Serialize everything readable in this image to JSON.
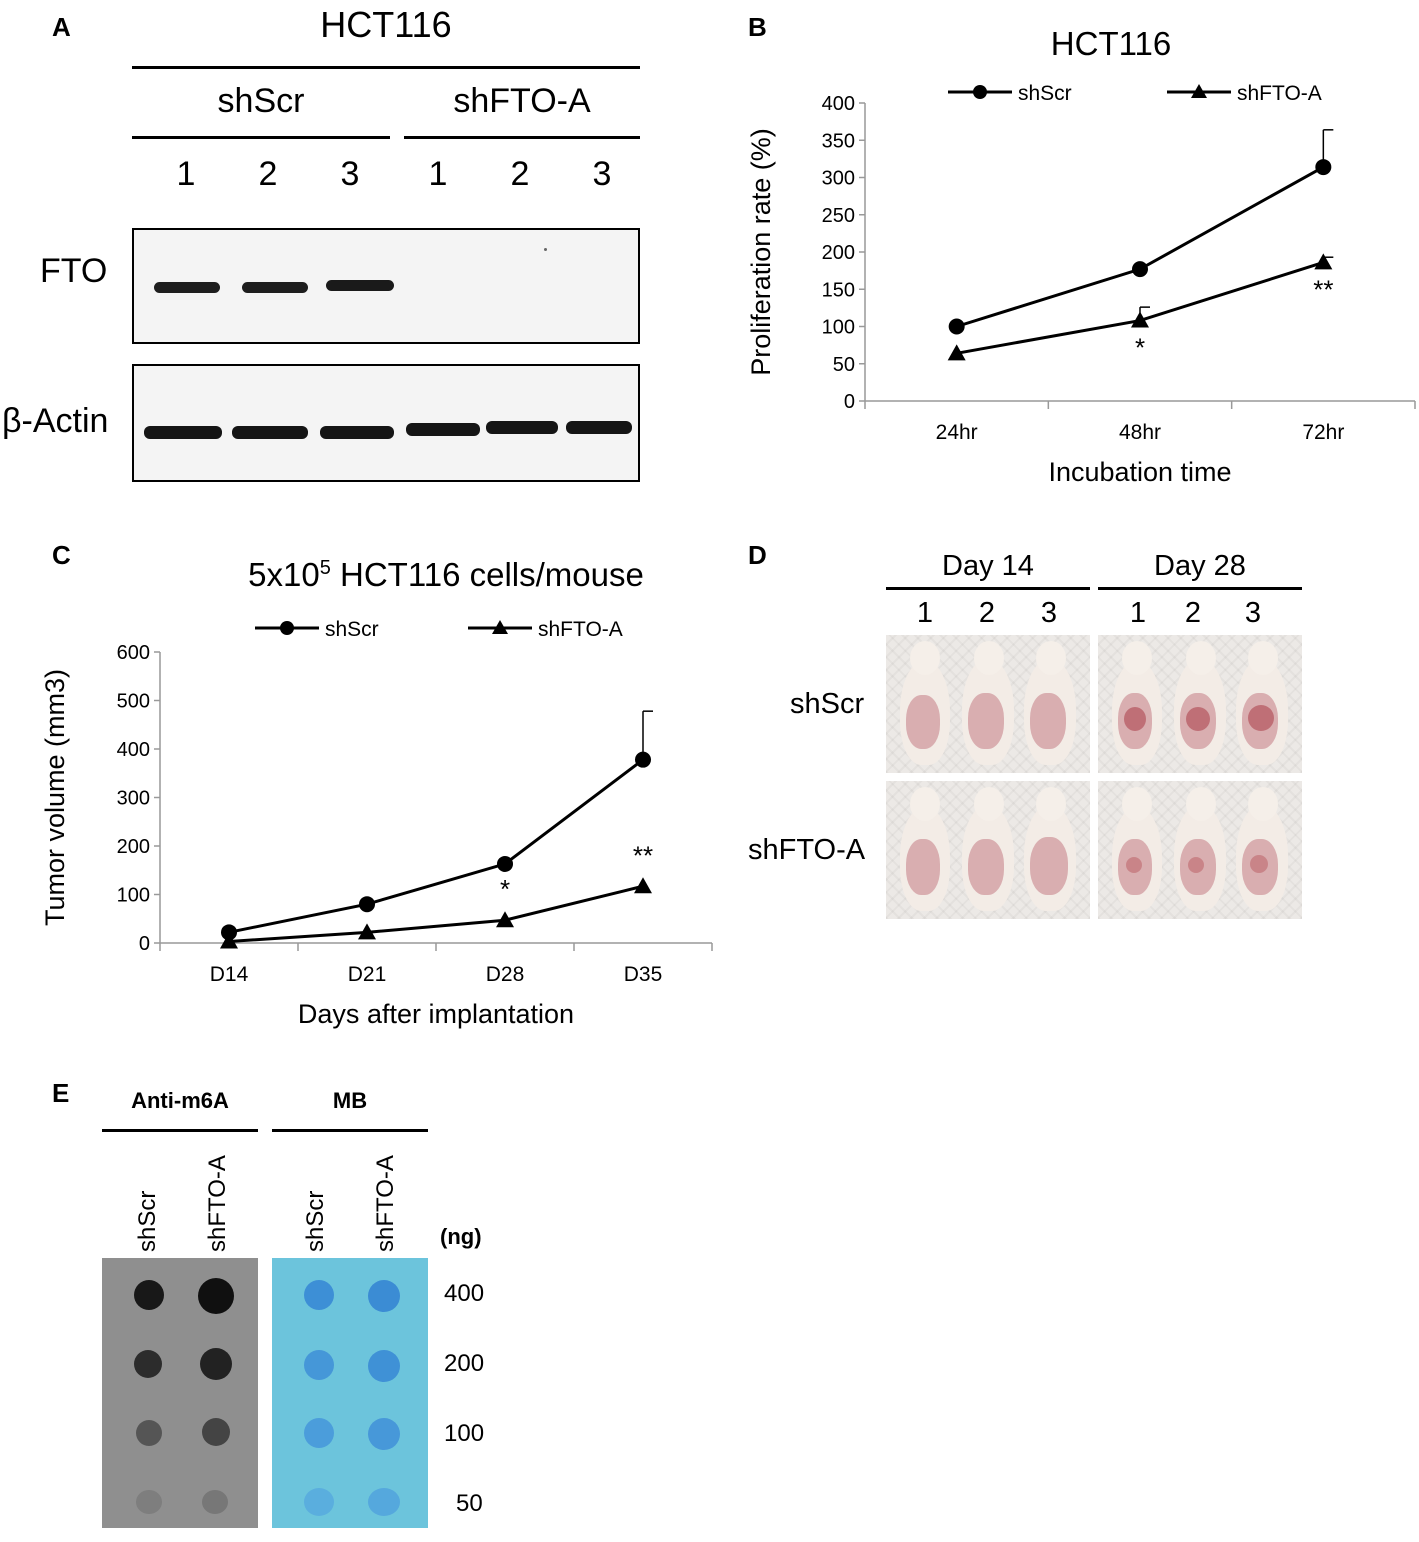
{
  "panel_letters": {
    "a": "A",
    "b": "B",
    "c": "C",
    "d": "D",
    "e": "E"
  },
  "panelA": {
    "title": "HCT116",
    "group1": "shScr",
    "group2": "shFTO-A",
    "lanes": [
      "1",
      "2",
      "3",
      "1",
      "2",
      "3"
    ],
    "row1": "FTO",
    "row2": "β-Actin"
  },
  "chart_data": [
    {
      "id": "B",
      "type": "line",
      "title": "HCT116",
      "xlabel": "Incubation time",
      "ylabel": "Proliferation rate (%)",
      "categories": [
        "24hr",
        "48hr",
        "72hr"
      ],
      "ylim": [
        0,
        400
      ],
      "yticks": [
        "0",
        "50",
        "100",
        "150",
        "200",
        "250",
        "300",
        "350",
        "400"
      ],
      "series": [
        {
          "name": "shScr",
          "marker": "circle",
          "values": [
            100,
            177,
            314
          ],
          "errors": [
            0,
            0,
            50
          ]
        },
        {
          "name": "shFTO-A",
          "marker": "triangle",
          "values": [
            64,
            108,
            186
          ],
          "errors": [
            0,
            18,
            7
          ]
        }
      ],
      "annotations": [
        "",
        "*",
        "**"
      ]
    },
    {
      "id": "C",
      "type": "line",
      "title_main": "5x10",
      "title_sup": "5",
      "title_rest": " HCT116 cells/mouse",
      "xlabel": "Days after implantation",
      "ylabel": "Tumor volume (mm3)",
      "categories": [
        "D14",
        "D21",
        "D28",
        "D35"
      ],
      "ylim": [
        0,
        600
      ],
      "yticks": [
        "0",
        "100",
        "200",
        "300",
        "400",
        "500",
        "600"
      ],
      "series": [
        {
          "name": "shScr",
          "marker": "circle",
          "values": [
            22,
            80,
            163,
            378
          ],
          "errors": [
            0,
            0,
            0,
            100
          ]
        },
        {
          "name": "shFTO-A",
          "marker": "triangle",
          "values": [
            3,
            22,
            47,
            117
          ],
          "errors": [
            0,
            0,
            0,
            0
          ]
        }
      ],
      "annotations": [
        "",
        "",
        "*",
        "**"
      ]
    }
  ],
  "panelD": {
    "day1": "Day 14",
    "day2": "Day 28",
    "mice": [
      "1",
      "2",
      "3"
    ],
    "row1": "shScr",
    "row2": "shFTO-A"
  },
  "panelE": {
    "group1": "Anti-m6A",
    "group2": "MB",
    "lane_labels": [
      "shScr",
      "shFTO-A",
      "shScr",
      "shFTO-A"
    ],
    "unit": "(ng)",
    "amounts": [
      "400",
      "200",
      "100",
      "50"
    ]
  },
  "colors": {
    "ink": "#000000",
    "mb_blue": "#6cc4dc",
    "dot_gray": "#8f8f8f"
  }
}
